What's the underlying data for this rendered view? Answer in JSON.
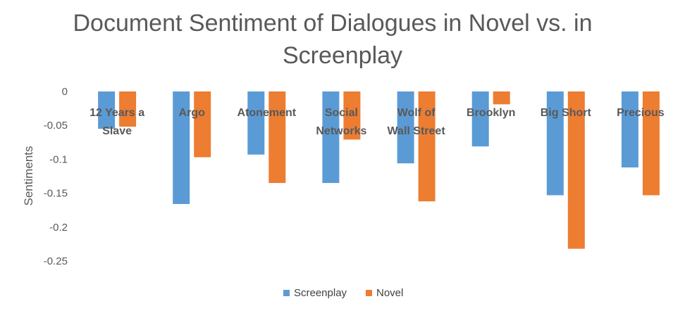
{
  "chart_data": {
    "type": "bar",
    "title_lines": [
      "Document Sentiment of Dialogues in Novel vs. in",
      "Screenplay"
    ],
    "xlabel": "",
    "ylabel": "Sentiments",
    "ylim": [
      -0.25,
      0
    ],
    "yticks": [
      0,
      -0.05,
      -0.1,
      -0.15,
      -0.2,
      -0.25
    ],
    "ytick_labels": [
      "0",
      "-0.05",
      "-0.1",
      "-0.15",
      "-0.2",
      "-0.25"
    ],
    "categories": [
      "12 Years a Slave",
      "Argo",
      "Atonement",
      "Social Networks",
      "Wolf of Wall Street",
      "Brooklyn",
      "Big Short",
      "Precious"
    ],
    "category_label_lines": [
      [
        "12 Years a",
        "Slave"
      ],
      [
        "Argo"
      ],
      [
        "Atonement"
      ],
      [
        "Social",
        "Networks"
      ],
      [
        "Wolf of",
        "Wall Street"
      ],
      [
        "Brooklyn"
      ],
      [
        "Big Short"
      ],
      [
        "Precious"
      ]
    ],
    "series": [
      {
        "name": "Screenplay",
        "color": "#5B9BD5",
        "values": [
          -0.055,
          -0.166,
          -0.093,
          -0.135,
          -0.106,
          -0.081,
          -0.153,
          -0.112
        ]
      },
      {
        "name": "Novel",
        "color": "#ED7D31",
        "values": [
          -0.052,
          -0.097,
          -0.135,
          -0.071,
          -0.162,
          -0.019,
          -0.232,
          -0.153
        ]
      }
    ],
    "grid": false,
    "legend_position": "bottom"
  }
}
